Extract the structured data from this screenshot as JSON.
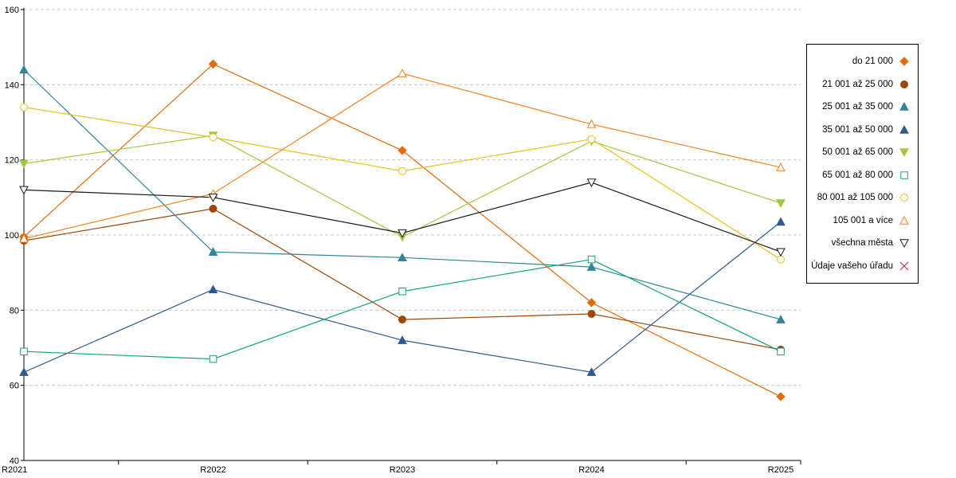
{
  "chart_data": {
    "type": "line",
    "title": "",
    "xlabel": "",
    "ylabel": "",
    "categories": [
      "R2021",
      "R2022",
      "R2023",
      "R2024",
      "R2025"
    ],
    "ylim": [
      40,
      160
    ],
    "yticks": [
      40,
      60,
      80,
      100,
      120,
      140,
      160
    ],
    "grid": "horizontal-dashed",
    "legend_position": "right",
    "series": [
      {
        "name": "do 21 000",
        "color": "#E36C0A",
        "marker": "diamond",
        "filled": true,
        "values": [
          99.5,
          145.5,
          122.5,
          82,
          57
        ]
      },
      {
        "name": "21 001 až 25 000",
        "color": "#9C4708",
        "marker": "circle",
        "filled": true,
        "values": [
          98.5,
          107,
          77.5,
          79,
          69.5
        ]
      },
      {
        "name": "25 001 až 35 000",
        "color": "#31849B",
        "marker": "triangle-up",
        "filled": true,
        "values": [
          144,
          95.5,
          94,
          91.5,
          77.5
        ]
      },
      {
        "name": "35 001 až 50 000",
        "color": "#2E5B8F",
        "marker": "triangle-up",
        "filled": true,
        "values": [
          63.5,
          85.5,
          72,
          63.5,
          103.5
        ]
      },
      {
        "name": "50 001 až 65 000",
        "color": "#A2C73E",
        "marker": "triangle-down",
        "filled": true,
        "values": [
          119,
          126.5,
          99.5,
          125,
          108.5
        ]
      },
      {
        "name": "65 001 až 80 000",
        "color": "#14A377",
        "marker": "square",
        "filled": false,
        "values": [
          69,
          67,
          85,
          93.5,
          69
        ]
      },
      {
        "name": "80 001 až 105 000",
        "color": "#E8C11C",
        "marker": "circle",
        "filled": false,
        "values": [
          134,
          126,
          117,
          125.5,
          93.5
        ]
      },
      {
        "name": "105 001 a více",
        "color": "#F5821F",
        "marker": "triangle-up",
        "filled": false,
        "values": [
          99,
          111,
          143,
          129.5,
          118
        ]
      },
      {
        "name": "všechna města",
        "color": "#1A1A1A",
        "marker": "triangle-down",
        "filled": false,
        "values": [
          112,
          110,
          100.5,
          114,
          95.5
        ]
      },
      {
        "name": "Údaje vašeho úřadu",
        "color": "#C0392B",
        "marker": "x",
        "filled": false,
        "values": [
          null,
          null,
          null,
          null,
          null
        ]
      }
    ]
  }
}
